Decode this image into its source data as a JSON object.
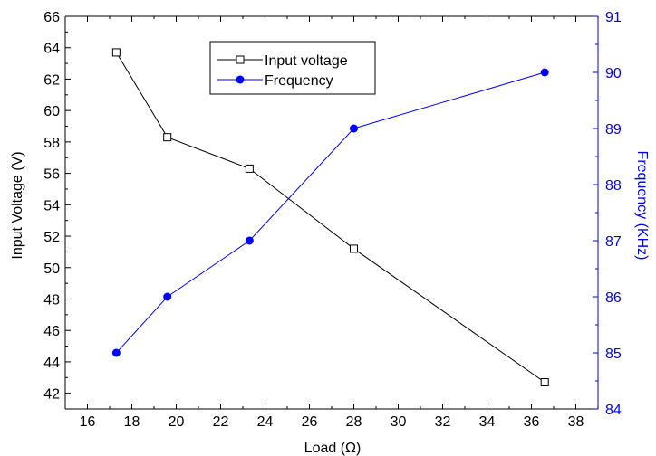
{
  "chart_data": {
    "type": "line",
    "title": "",
    "xlabel": "Load (Ω)",
    "ylabel": "Input Voltage (V)",
    "y2label": "Frequency (KHz)",
    "xlim": [
      15,
      39
    ],
    "ylim": [
      41,
      66
    ],
    "y2lim": [
      84,
      91
    ],
    "x_ticks": [
      16,
      18,
      20,
      22,
      24,
      26,
      28,
      30,
      32,
      34,
      36,
      38
    ],
    "y_ticks": [
      42,
      44,
      46,
      48,
      50,
      52,
      54,
      56,
      58,
      60,
      62,
      64,
      66
    ],
    "y2_ticks": [
      84,
      85,
      86,
      87,
      88,
      89,
      90,
      91
    ],
    "grid": false,
    "legend_position": "top-center",
    "x": [
      17.3,
      19.6,
      23.3,
      28.0,
      36.6
    ],
    "series": [
      {
        "name": "Input voltage",
        "axis": "left",
        "marker": "open-square",
        "color": "#000000",
        "values": [
          63.7,
          58.3,
          56.3,
          51.2,
          42.7
        ]
      },
      {
        "name": "Frequency",
        "axis": "right",
        "marker": "filled-circle",
        "color": "#0000ff",
        "values": [
          85,
          86,
          87,
          89,
          90
        ]
      }
    ]
  }
}
